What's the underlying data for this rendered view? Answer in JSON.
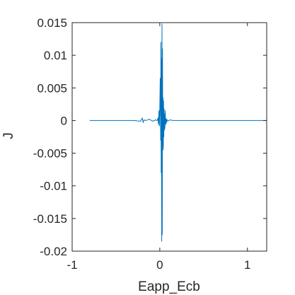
{
  "chart_data": {
    "type": "line",
    "xlabel": "Eapp_Ecb",
    "ylabel": "J",
    "xlim": [
      -1,
      1.22
    ],
    "ylim": [
      -0.02,
      0.015
    ],
    "x_ticks": [
      -1,
      0,
      1
    ],
    "x_tick_labels": [
      "-1",
      "0",
      "1"
    ],
    "y_ticks": [
      -0.02,
      -0.015,
      -0.01,
      -0.005,
      0,
      0.005,
      0.01,
      0.015
    ],
    "y_tick_labels": [
      "-0.02",
      "-0.015",
      "-0.01",
      "-0.005",
      "0",
      "0.005",
      "0.01",
      "0.015"
    ],
    "grid": false,
    "box": true,
    "series": [
      {
        "color": "#0072BD",
        "x": [
          -0.8,
          -0.5,
          -0.3,
          -0.22,
          -0.2,
          -0.19,
          -0.18,
          -0.16,
          -0.12,
          -0.08,
          -0.05,
          -0.03,
          -0.02,
          -0.015,
          -0.01,
          -0.005,
          0.0,
          0.005,
          0.01,
          0.013,
          0.016,
          0.019,
          0.022,
          0.025,
          0.028,
          0.031,
          0.034,
          0.037,
          0.04,
          0.043,
          0.046,
          0.049,
          0.052,
          0.055,
          0.058,
          0.062,
          0.066,
          0.07,
          0.075,
          0.08,
          0.09,
          0.1,
          0.12,
          0.15,
          0.2,
          0.4,
          0.8,
          1.22
        ],
        "y": [
          0.0,
          0.0,
          0.0,
          -0.0001,
          0.0004,
          -0.0003,
          0.0001,
          0.0,
          0.0002,
          -0.0001,
          0.0001,
          0.0,
          0.0004,
          -0.0006,
          0.0015,
          -0.0008,
          0.002,
          0.0065,
          -0.003,
          0.012,
          -0.008,
          0.0095,
          -0.0185,
          0.0148,
          -0.0175,
          0.011,
          -0.004,
          0.0035,
          -0.0045,
          0.003,
          -0.0025,
          0.0018,
          -0.0015,
          0.001,
          -0.0012,
          0.0015,
          -0.0006,
          0.0003,
          -0.0004,
          0.0002,
          -0.0001,
          0.0,
          0.0001,
          0.0,
          0.0,
          0.0,
          0.0,
          0.0
        ]
      }
    ]
  }
}
